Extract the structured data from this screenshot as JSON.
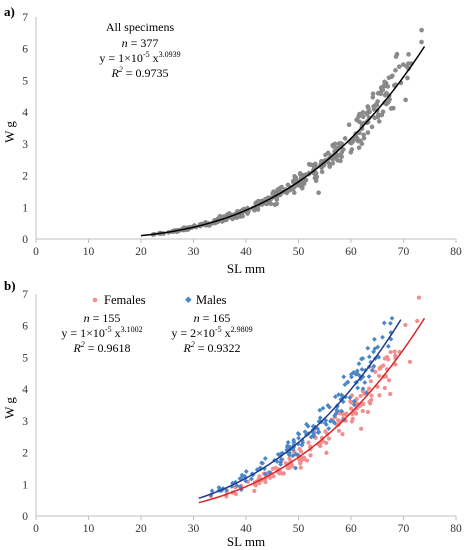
{
  "chart_data": [
    {
      "type": "scatter",
      "panel_label": "a)",
      "xlabel": "SL mm",
      "ylabel": "W g",
      "xlim": [
        0,
        80
      ],
      "ylim": [
        0,
        7
      ],
      "xticks": [
        0,
        10,
        20,
        30,
        40,
        50,
        60,
        70,
        80
      ],
      "yticks": [
        0,
        1,
        2,
        3,
        4,
        5,
        6,
        7
      ],
      "grid": false,
      "annotation": {
        "group": "All specimens",
        "n": "= 377",
        "eq_base": "y = 1×10",
        "eq_exp1": "-5",
        "eq_mid": " x",
        "eq_exp2": "3.0939",
        "r2": "= 0.9735"
      },
      "series": [
        {
          "name": "All specimens",
          "color": "#8c8c8c",
          "marker": "circle",
          "count": 377,
          "x_range": [
            20,
            74
          ],
          "fit": {
            "a": 1e-05,
            "b": 3.0939,
            "x_range": [
              20,
              74
            ],
            "color": "#000000"
          }
        }
      ]
    },
    {
      "type": "scatter",
      "panel_label": "b)",
      "xlabel": "SL mm",
      "ylabel": "W g",
      "xlim": [
        0,
        80
      ],
      "ylim": [
        0,
        7
      ],
      "xticks": [
        0,
        10,
        20,
        30,
        40,
        50,
        60,
        70,
        80
      ],
      "yticks": [
        0,
        1,
        2,
        3,
        4,
        5,
        6,
        7
      ],
      "grid": false,
      "legend": {
        "placement": "top-left, horizontal"
      },
      "series": [
        {
          "name": "Females",
          "color": "#f28e8e",
          "marker": "circle",
          "count": 155,
          "x_range": [
            31,
            73.5
          ],
          "annotation": {
            "n": "= 155",
            "eq_base": "y = 1×10",
            "eq_exp1": "-5",
            "eq_mid": " x",
            "eq_exp2": "3.1002",
            "r2": "= 0.9618"
          },
          "fit": {
            "a": 1e-05,
            "b": 3.1002,
            "x_range": [
              31,
              74
            ],
            "color": "#d62728"
          }
        },
        {
          "name": "Males",
          "color": "#4a86c8",
          "marker": "diamond",
          "count": 165,
          "x_range": [
            31,
            69.5
          ],
          "annotation": {
            "n": "= 165",
            "eq_base": "y = 2×10",
            "eq_exp1": "-5",
            "eq_mid": " x",
            "eq_exp2": "2.9809",
            "r2": "= 0.9322"
          },
          "fit": {
            "a": 2e-05,
            "b": 2.9809,
            "x_range": [
              31,
              69.5
            ],
            "color": "#1f3b8c"
          }
        }
      ]
    }
  ]
}
